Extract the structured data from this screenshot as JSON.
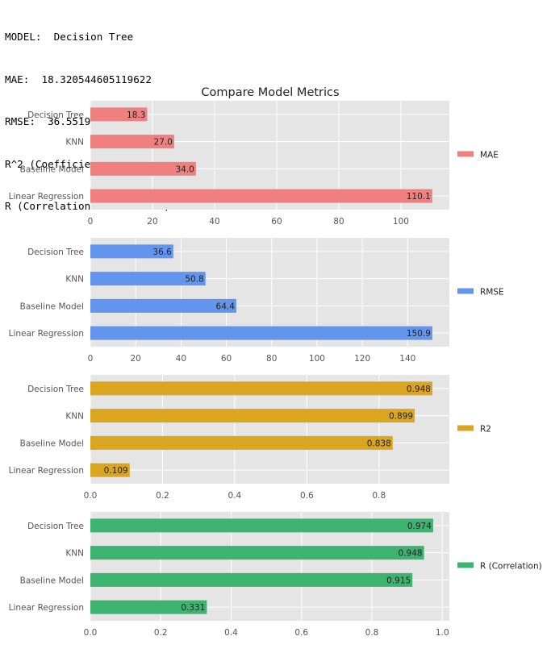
{
  "output": {
    "lines": [
      "MODEL:  Decision Tree",
      "MAE:  18.320544605119622",
      "RMSE:  36.55195864588855",
      "R^2 (Coefficient of determination):  0.947748739434292",
      "R (Correlation coefficient):  0.9735379658458295"
    ]
  },
  "colors": {
    "panel_bg": "#e5e5e5",
    "grid": "#ffffff",
    "tick_text": "#555555",
    "mae": "#f08080",
    "rmse": "#6495ed",
    "r2": "#daa520",
    "r": "#3cb371"
  },
  "chart_data": {
    "title": "Compare Model Metrics",
    "type": "bar",
    "orientation": "horizontal",
    "categories": [
      "Decision Tree",
      "KNN",
      "Baseline Model",
      "Linear Regression"
    ],
    "grid": true,
    "legend_position": "right",
    "panels": [
      {
        "name": "MAE",
        "color_key": "mae",
        "values": [
          18.3,
          27.0,
          34.0,
          110.1
        ],
        "labels": [
          "18.3",
          "27.0",
          "34.0",
          "110.1"
        ],
        "xlim": [
          0,
          115.6
        ],
        "ticks": [
          0,
          20,
          40,
          60,
          80,
          100
        ],
        "tick_labels": [
          "0",
          "20",
          "40",
          "60",
          "80",
          "100"
        ]
      },
      {
        "name": "RMSE",
        "color_key": "rmse",
        "values": [
          36.6,
          50.8,
          64.4,
          150.9
        ],
        "labels": [
          "36.6",
          "50.8",
          "64.4",
          "150.9"
        ],
        "xlim": [
          0,
          158.4
        ],
        "ticks": [
          0,
          20,
          40,
          60,
          80,
          100,
          120,
          140
        ],
        "tick_labels": [
          "0",
          "20",
          "40",
          "60",
          "80",
          "100",
          "120",
          "140"
        ]
      },
      {
        "name": "R2",
        "color_key": "r2",
        "values": [
          0.948,
          0.899,
          0.838,
          0.109
        ],
        "labels": [
          "0.948",
          "0.899",
          "0.838",
          "0.109"
        ],
        "xlim": [
          0,
          0.995
        ],
        "ticks": [
          0,
          0.2,
          0.4,
          0.6,
          0.8
        ],
        "tick_labels": [
          "0.0",
          "0.2",
          "0.4",
          "0.6",
          "0.8"
        ]
      },
      {
        "name": "R (Correlation)",
        "color_key": "r",
        "values": [
          0.974,
          0.948,
          0.915,
          0.331
        ],
        "labels": [
          "0.974",
          "0.948",
          "0.915",
          "0.331"
        ],
        "xlim": [
          0,
          1.02
        ],
        "ticks": [
          0,
          0.2,
          0.4,
          0.6,
          0.8,
          1.0
        ],
        "tick_labels": [
          "0.0",
          "0.2",
          "0.4",
          "0.6",
          "0.8",
          "1.0"
        ]
      }
    ]
  }
}
